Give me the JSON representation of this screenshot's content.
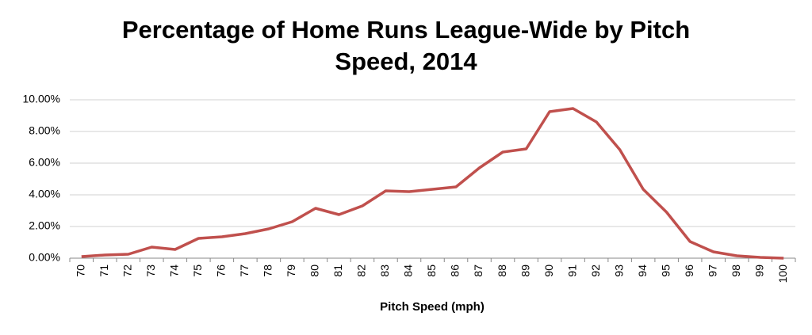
{
  "chart_data": {
    "type": "line",
    "title": "Percentage of Home Runs League-Wide by Pitch Speed, 2014",
    "x_label": "Pitch Speed (mph)",
    "categories": [
      "70",
      "71",
      "72",
      "73",
      "74",
      "75",
      "76",
      "77",
      "78",
      "79",
      "80",
      "81",
      "82",
      "83",
      "84",
      "85",
      "86",
      "87",
      "88",
      "89",
      "90",
      "91",
      "92",
      "93",
      "94",
      "95",
      "96",
      "97",
      "98",
      "99",
      "100"
    ],
    "series": [
      {
        "color": "#c0504d",
        "values": [
          0.1,
          0.2,
          0.25,
          0.7,
          0.55,
          1.25,
          1.35,
          1.55,
          1.85,
          2.3,
          3.15,
          2.75,
          3.3,
          4.25,
          4.2,
          4.35,
          4.5,
          5.7,
          6.7,
          6.9,
          9.25,
          9.45,
          8.6,
          6.85,
          4.35,
          2.9,
          1.05,
          0.4,
          0.15,
          0.05,
          0.0
        ]
      }
    ],
    "ylim": [
      0,
      10
    ],
    "yticks": [
      {
        "value": 0,
        "label": "0.00%"
      },
      {
        "value": 2,
        "label": "2.00%"
      },
      {
        "value": 4,
        "label": "4.00%"
      },
      {
        "value": 6,
        "label": "6.00%"
      },
      {
        "value": 8,
        "label": "8.00%"
      },
      {
        "value": 10,
        "label": "10.00%"
      }
    ],
    "grid": true
  }
}
